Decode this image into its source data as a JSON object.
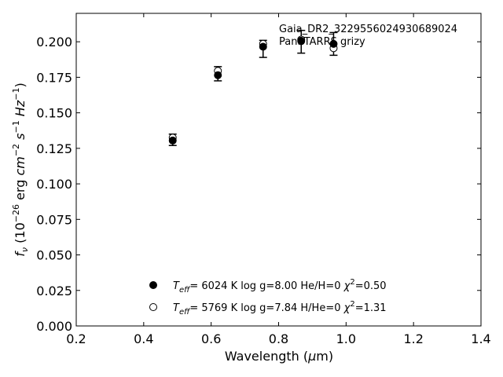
{
  "chart_data": {
    "type": "scatter",
    "xlabel": "Wavelength (μm)",
    "ylabel": "f_ν (10^-26 erg cm^-2 s^-1 Hz^-1)",
    "xlim": [
      0.2,
      1.4
    ],
    "ylim": [
      0.0,
      0.22
    ],
    "x_ticks": [
      "0.2",
      "0.4",
      "0.6",
      "0.8",
      "1.0",
      "1.2",
      "1.4"
    ],
    "y_ticks": [
      "0.000",
      "0.025",
      "0.050",
      "0.075",
      "0.100",
      "0.125",
      "0.150",
      "0.175",
      "0.200"
    ],
    "grid": false,
    "annotations": [
      "Gaia_DR2_3229556024930689024",
      "PanSTARRS grizy"
    ],
    "observed": [
      {
        "x": 0.486,
        "y": 0.131,
        "err": 0.004
      },
      {
        "x": 0.62,
        "y": 0.1775,
        "err": 0.005
      },
      {
        "x": 0.754,
        "y": 0.195,
        "err": 0.006
      },
      {
        "x": 0.867,
        "y": 0.2,
        "err": 0.008
      },
      {
        "x": 0.963,
        "y": 0.1985,
        "err": 0.008
      }
    ],
    "series": [
      {
        "label_parts": [
          "T",
          "eff",
          "=  6024 K  log g=8.00  He/H=0  ",
          "χ",
          "2",
          "=0.50"
        ],
        "marker": "filled",
        "values": [
          {
            "x": 0.486,
            "y": 0.1305
          },
          {
            "x": 0.62,
            "y": 0.1765
          },
          {
            "x": 0.754,
            "y": 0.1965
          },
          {
            "x": 0.867,
            "y": 0.2005
          },
          {
            "x": 0.963,
            "y": 0.1985
          }
        ]
      },
      {
        "label_parts": [
          "T",
          "eff",
          "=  5769 K  log g=7.84  H/He=0  ",
          "χ",
          "2",
          "=1.31"
        ],
        "marker": "open",
        "values": [
          {
            "x": 0.486,
            "y": 0.1325
          },
          {
            "x": 0.62,
            "y": 0.1795
          },
          {
            "x": 0.754,
            "y": 0.1985
          },
          {
            "x": 0.867,
            "y": 0.2015
          },
          {
            "x": 0.963,
            "y": 0.1955
          }
        ]
      }
    ],
    "ylabel_parts": [
      "f",
      "ν",
      " (10",
      "−26",
      " erg ",
      "cm",
      "−2",
      " ",
      "s",
      "−1",
      " ",
      "Hz",
      "−1",
      ")"
    ],
    "xlabel_parts": [
      "Wavelength (",
      "μ",
      "m)"
    ]
  }
}
